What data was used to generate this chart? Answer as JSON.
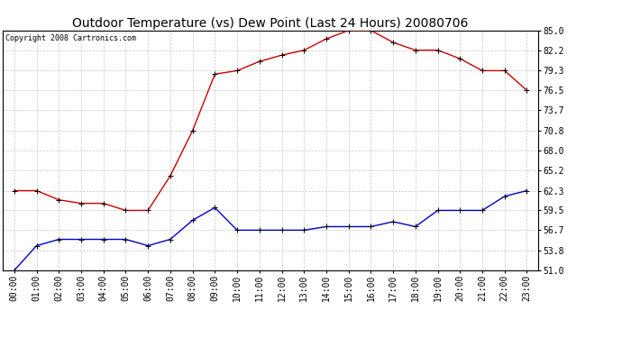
{
  "title": "Outdoor Temperature (vs) Dew Point (Last 24 Hours) 20080706",
  "copyright": "Copyright 2008 Cartronics.com",
  "x_labels": [
    "00:00",
    "01:00",
    "02:00",
    "03:00",
    "04:00",
    "05:00",
    "06:00",
    "07:00",
    "08:00",
    "09:00",
    "10:00",
    "11:00",
    "12:00",
    "13:00",
    "14:00",
    "15:00",
    "16:00",
    "17:00",
    "18:00",
    "19:00",
    "20:00",
    "21:00",
    "22:00",
    "23:00"
  ],
  "temp_red": [
    62.3,
    62.3,
    61.0,
    60.5,
    60.5,
    59.5,
    59.5,
    64.4,
    70.8,
    78.8,
    79.3,
    80.6,
    81.5,
    82.2,
    83.8,
    85.0,
    85.0,
    83.3,
    82.2,
    82.2,
    81.0,
    79.3,
    79.3,
    76.5
  ],
  "dew_blue": [
    51.0,
    54.5,
    55.4,
    55.4,
    55.4,
    55.4,
    54.5,
    55.4,
    58.1,
    59.9,
    56.7,
    56.7,
    56.7,
    56.7,
    57.2,
    57.2,
    57.2,
    57.9,
    57.2,
    59.5,
    59.5,
    59.5,
    61.5,
    62.3
  ],
  "y_ticks": [
    51.0,
    53.8,
    56.7,
    59.5,
    62.3,
    65.2,
    68.0,
    70.8,
    73.7,
    76.5,
    79.3,
    82.2,
    85.0
  ],
  "y_min": 51.0,
  "y_max": 85.0,
  "bg_color": "#ffffff",
  "plot_bg_color": "#ffffff",
  "grid_color": "#c8c8c8",
  "red_color": "#cc0000",
  "blue_color": "#0000cc",
  "title_fontsize": 10,
  "tick_fontsize": 7,
  "copyright_fontsize": 6
}
